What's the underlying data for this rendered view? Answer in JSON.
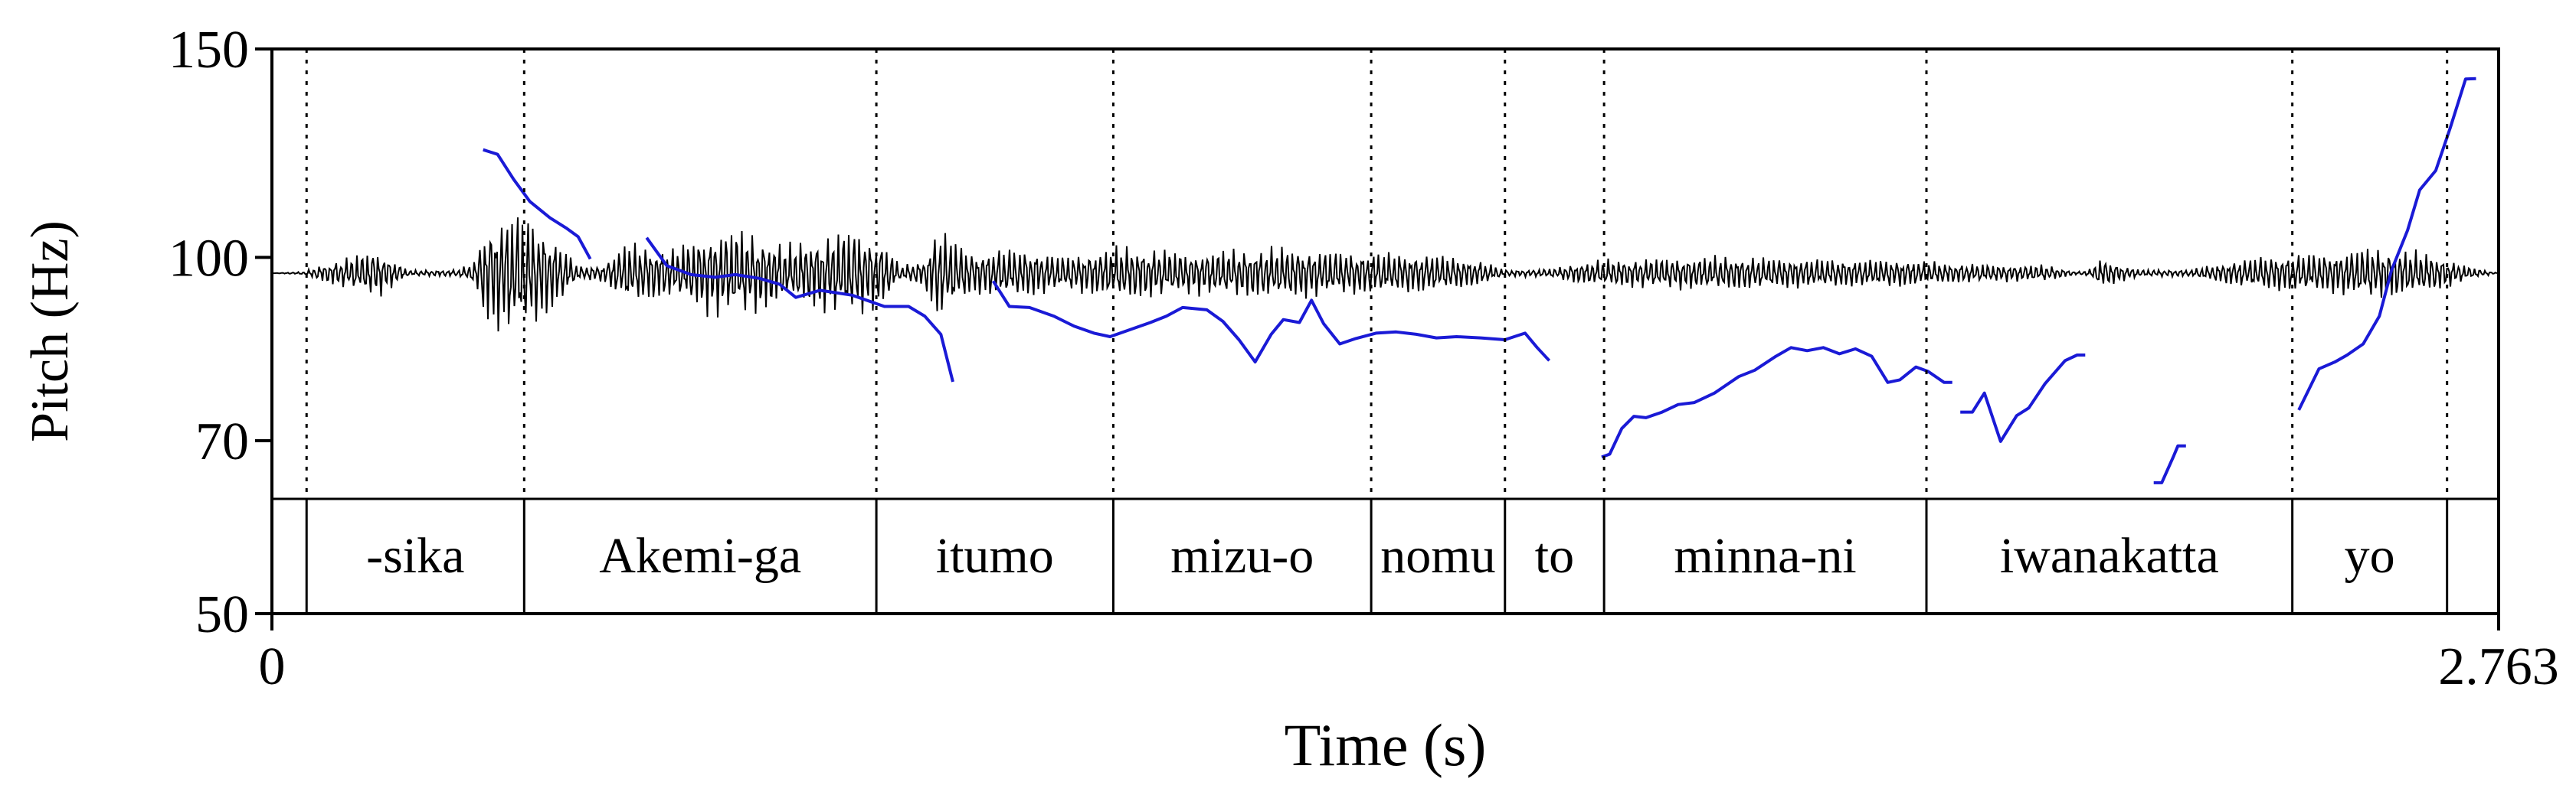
{
  "chart_data": {
    "type": "line",
    "title": "",
    "xlabel": "Time (s)",
    "ylabel": "Pitch (Hz)",
    "xlim": [
      0,
      2.763
    ],
    "ylim": [
      50,
      150
    ],
    "y_scale": "log",
    "grid": false,
    "legend": "none",
    "x_tick_labels": [
      "0",
      "2.763"
    ],
    "y_tick_labels": [
      "150",
      "100",
      "70",
      "50"
    ],
    "y_ticks": [
      150,
      100,
      70,
      50
    ],
    "colors": {
      "pitch": "#1a1ad6",
      "waveform": "#000000",
      "frame": "#000000"
    },
    "series": [
      {
        "values": [
          [
            [
              0.262,
              123.3
            ],
            [
              0.28,
              122.2
            ],
            [
              0.3,
              116.4
            ],
            [
              0.32,
              111.5
            ],
            [
              0.345,
              108.0
            ],
            [
              0.365,
              105.9
            ],
            [
              0.38,
              104.1
            ],
            [
              0.395,
              99.7
            ]
          ],
          [
            [
              0.465,
              103.9
            ],
            [
              0.49,
              98.4
            ],
            [
              0.52,
              96.7
            ],
            [
              0.55,
              96.2
            ],
            [
              0.575,
              96.7
            ],
            [
              0.605,
              96.0
            ],
            [
              0.63,
              94.9
            ],
            [
              0.65,
              92.5
            ],
            [
              0.68,
              93.8
            ],
            [
              0.72,
              92.9
            ],
            [
              0.76,
              90.9
            ],
            [
              0.79,
              90.9
            ],
            [
              0.81,
              89.2
            ],
            [
              0.83,
              86.1
            ],
            [
              0.845,
              78.5
            ]
          ],
          [
            [
              0.895,
              95.5
            ],
            [
              0.915,
              90.9
            ],
            [
              0.94,
              90.7
            ],
            [
              0.97,
              89.2
            ],
            [
              0.995,
              87.5
            ],
            [
              1.02,
              86.3
            ],
            [
              1.04,
              85.7
            ],
            [
              1.065,
              86.9
            ],
            [
              1.09,
              88.1
            ],
            [
              1.11,
              89.2
            ],
            [
              1.13,
              90.7
            ],
            [
              1.16,
              90.3
            ],
            [
              1.18,
              88.3
            ],
            [
              1.2,
              85.2
            ],
            [
              1.22,
              81.6
            ],
            [
              1.24,
              86.1
            ],
            [
              1.255,
              88.6
            ],
            [
              1.275,
              88.1
            ],
            [
              1.29,
              92.0
            ],
            [
              1.305,
              87.9
            ],
            [
              1.325,
              84.5
            ],
            [
              1.345,
              85.4
            ],
            [
              1.37,
              86.3
            ],
            [
              1.395,
              86.5
            ],
            [
              1.42,
              86.1
            ],
            [
              1.445,
              85.5
            ],
            [
              1.47,
              85.7
            ],
            [
              1.5,
              85.5
            ],
            [
              1.53,
              85.2
            ],
            [
              1.555,
              86.3
            ],
            [
              1.57,
              83.9
            ],
            [
              1.585,
              81.8
            ]
          ],
          [
            [
              1.65,
              67.8
            ],
            [
              1.66,
              68.2
            ],
            [
              1.675,
              71.7
            ],
            [
              1.69,
              73.4
            ],
            [
              1.705,
              73.2
            ],
            [
              1.725,
              74.0
            ],
            [
              1.745,
              75.1
            ],
            [
              1.765,
              75.4
            ],
            [
              1.79,
              76.8
            ],
            [
              1.82,
              79.3
            ],
            [
              1.84,
              80.3
            ],
            [
              1.865,
              82.4
            ],
            [
              1.885,
              83.9
            ],
            [
              1.905,
              83.4
            ],
            [
              1.925,
              83.9
            ],
            [
              1.945,
              82.9
            ],
            [
              1.965,
              83.7
            ],
            [
              1.985,
              82.5
            ],
            [
              2.005,
              78.4
            ],
            [
              2.02,
              78.8
            ],
            [
              2.04,
              80.8
            ],
            [
              2.055,
              80.1
            ],
            [
              2.075,
              78.4
            ],
            [
              2.085,
              78.4
            ]
          ],
          [
            [
              2.095,
              74.0
            ],
            [
              2.11,
              74.0
            ],
            [
              2.125,
              76.8
            ],
            [
              2.145,
              69.9
            ],
            [
              2.165,
              73.5
            ],
            [
              2.18,
              74.6
            ],
            [
              2.2,
              78.2
            ],
            [
              2.225,
              81.8
            ],
            [
              2.24,
              82.7
            ],
            [
              2.25,
              82.7
            ]
          ],
          [
            [
              2.335,
              64.5
            ],
            [
              2.345,
              64.5
            ],
            [
              2.36,
              68.0
            ],
            [
              2.365,
              69.3
            ],
            [
              2.375,
              69.3
            ]
          ],
          [
            [
              2.515,
              74.3
            ],
            [
              2.54,
              80.5
            ],
            [
              2.56,
              81.6
            ],
            [
              2.575,
              82.7
            ],
            [
              2.595,
              84.5
            ],
            [
              2.615,
              89.2
            ],
            [
              2.63,
              97.5
            ],
            [
              2.65,
              105.4
            ],
            [
              2.665,
              114.0
            ],
            [
              2.685,
              118.4
            ],
            [
              2.703,
              128.7
            ],
            [
              2.722,
              141.5
            ],
            [
              2.735,
              141.6
            ]
          ]
        ]
      }
    ]
  },
  "textgrid": {
    "boundaries_s": [
      0.043,
      0.313,
      0.75,
      1.044,
      1.364,
      1.53,
      1.653,
      2.053,
      2.507,
      2.699
    ],
    "intervals": [
      {
        "label": "-sika",
        "start": 0.043,
        "end": 0.313
      },
      {
        "label": "Akemi-ga",
        "start": 0.313,
        "end": 0.75
      },
      {
        "label": "itumo",
        "start": 0.75,
        "end": 1.044
      },
      {
        "label": "mizu-o",
        "start": 1.044,
        "end": 1.364
      },
      {
        "label": "nomu",
        "start": 1.364,
        "end": 1.53
      },
      {
        "label": "to",
        "start": 1.53,
        "end": 1.653
      },
      {
        "label": "minna-ni",
        "start": 1.653,
        "end": 2.053
      },
      {
        "label": "iwanakatta",
        "start": 2.053,
        "end": 2.507
      },
      {
        "label": "yo",
        "start": 2.507,
        "end": 2.699
      }
    ]
  },
  "waveform": {
    "envelope": [
      [
        0.0,
        0.0
      ],
      [
        0.04,
        0.02
      ],
      [
        0.06,
        0.12
      ],
      [
        0.1,
        0.25
      ],
      [
        0.13,
        0.35
      ],
      [
        0.15,
        0.2
      ],
      [
        0.17,
        0.04
      ],
      [
        0.23,
        0.05
      ],
      [
        0.25,
        0.15
      ],
      [
        0.265,
        0.7
      ],
      [
        0.29,
        0.9
      ],
      [
        0.315,
        0.85
      ],
      [
        0.34,
        0.65
      ],
      [
        0.36,
        0.4
      ],
      [
        0.38,
        0.1
      ],
      [
        0.41,
        0.12
      ],
      [
        0.44,
        0.45
      ],
      [
        0.47,
        0.4
      ],
      [
        0.5,
        0.35
      ],
      [
        0.54,
        0.6
      ],
      [
        0.58,
        0.65
      ],
      [
        0.61,
        0.55
      ],
      [
        0.64,
        0.4
      ],
      [
        0.68,
        0.55
      ],
      [
        0.72,
        0.65
      ],
      [
        0.76,
        0.45
      ],
      [
        0.78,
        0.1
      ],
      [
        0.81,
        0.2
      ],
      [
        0.825,
        0.7
      ],
      [
        0.845,
        0.5
      ],
      [
        0.87,
        0.3
      ],
      [
        0.9,
        0.35
      ],
      [
        0.94,
        0.35
      ],
      [
        0.98,
        0.25
      ],
      [
        1.01,
        0.3
      ],
      [
        1.06,
        0.4
      ],
      [
        1.1,
        0.35
      ],
      [
        1.14,
        0.3
      ],
      [
        1.2,
        0.35
      ],
      [
        1.26,
        0.38
      ],
      [
        1.32,
        0.32
      ],
      [
        1.38,
        0.3
      ],
      [
        1.44,
        0.28
      ],
      [
        1.5,
        0.18
      ],
      [
        1.53,
        0.05
      ],
      [
        1.56,
        0.05
      ],
      [
        1.59,
        0.07
      ],
      [
        1.62,
        0.15
      ],
      [
        1.66,
        0.2
      ],
      [
        1.72,
        0.22
      ],
      [
        1.8,
        0.25
      ],
      [
        1.88,
        0.22
      ],
      [
        1.96,
        0.2
      ],
      [
        2.02,
        0.2
      ],
      [
        2.08,
        0.15
      ],
      [
        2.15,
        0.12
      ],
      [
        2.2,
        0.12
      ],
      [
        2.24,
        0.02
      ],
      [
        2.255,
        0.05
      ],
      [
        2.27,
        0.22
      ],
      [
        2.3,
        0.1
      ],
      [
        2.32,
        0.05
      ],
      [
        2.38,
        0.05
      ],
      [
        2.42,
        0.15
      ],
      [
        2.47,
        0.25
      ],
      [
        2.52,
        0.28
      ],
      [
        2.56,
        0.3
      ],
      [
        2.6,
        0.38
      ],
      [
        2.64,
        0.35
      ],
      [
        2.68,
        0.28
      ],
      [
        2.7,
        0.2
      ],
      [
        2.73,
        0.08
      ],
      [
        2.763,
        0.0
      ]
    ]
  }
}
